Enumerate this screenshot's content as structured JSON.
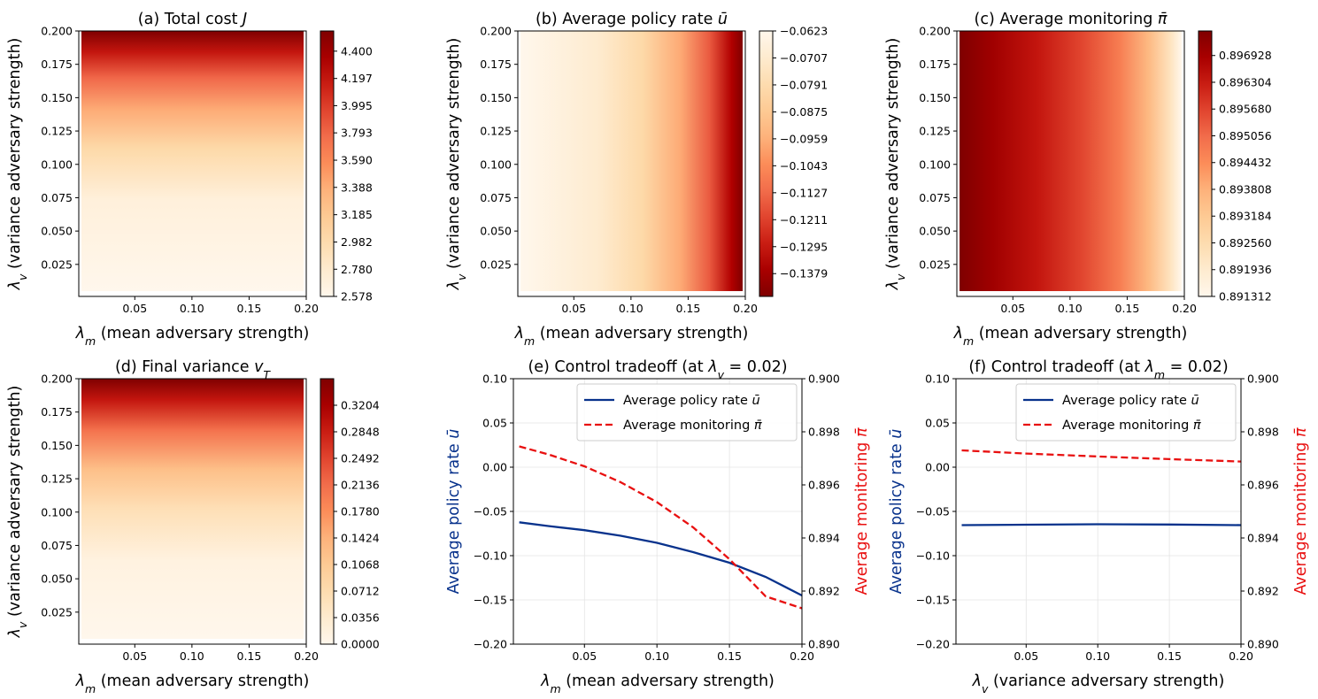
{
  "chart_data": [
    {
      "id": "a",
      "type": "heatmap",
      "title": "(a) Total cost J",
      "title_main": "(a) Total cost ",
      "title_sym": "J",
      "xlabel_sym": "λ",
      "xlabel_sub": "m",
      "xlabel_rest": " (mean adversary strength)",
      "ylabel_sym": "λ",
      "ylabel_sub": "v",
      "ylabel_rest": " (variance adversary strength)",
      "xlim": [
        0.001,
        0.2
      ],
      "ylim": [
        0.001,
        0.2
      ],
      "xticks": [
        "0.05",
        "0.10",
        "0.15",
        "0.20"
      ],
      "yticks": [
        "0.025",
        "0.050",
        "0.075",
        "0.100",
        "0.125",
        "0.150",
        "0.175",
        "0.200"
      ],
      "colorbar": {
        "min": 2.578,
        "max": 4.55,
        "colormap": "OrRd",
        "ticks": [
          "2.578",
          "2.780",
          "2.982",
          "3.185",
          "3.388",
          "3.590",
          "3.793",
          "3.995",
          "4.197",
          "4.400"
        ]
      },
      "gradient": "vertical",
      "gradient_profile": [
        [
          0,
          0.0
        ],
        [
          0.35,
          0.06
        ],
        [
          0.55,
          0.22
        ],
        [
          0.7,
          0.42
        ],
        [
          0.82,
          0.62
        ],
        [
          0.92,
          0.82
        ],
        [
          1.0,
          1.0
        ]
      ]
    },
    {
      "id": "b",
      "type": "heatmap",
      "title": "(b) Average policy rate ū",
      "title_main": "(b) Average policy rate ",
      "title_sym": "ū",
      "xlabel_sym": "λ",
      "xlabel_sub": "m",
      "xlabel_rest": " (mean adversary strength)",
      "ylabel_sym": "λ",
      "ylabel_sub": "v",
      "ylabel_rest": " (variance adversary strength)",
      "xlim": [
        0.001,
        0.2
      ],
      "ylim": [
        0.001,
        0.2
      ],
      "xticks": [
        "0.05",
        "0.10",
        "0.15",
        "0.20"
      ],
      "yticks": [
        "0.025",
        "0.050",
        "0.075",
        "0.100",
        "0.125",
        "0.150",
        "0.175",
        "0.200"
      ],
      "colorbar": {
        "min": -0.145,
        "max": -0.0623,
        "colormap": "OrRd_r",
        "ticks": [
          "−0.1379",
          "−0.1295",
          "−0.1211",
          "−0.1127",
          "−0.1043",
          "−0.0959",
          "−0.0875",
          "−0.0791",
          "−0.0707",
          "−0.0623"
        ]
      },
      "gradient": "horizontal",
      "gradient_profile": [
        [
          0,
          0.0
        ],
        [
          0.35,
          0.1
        ],
        [
          0.55,
          0.22
        ],
        [
          0.72,
          0.42
        ],
        [
          0.85,
          0.65
        ],
        [
          0.95,
          0.88
        ],
        [
          1.0,
          1.0
        ]
      ]
    },
    {
      "id": "c",
      "type": "heatmap",
      "title": "(c) Average monitoring π̄",
      "title_main": "(c) Average monitoring ",
      "title_sym": "π̄",
      "xlabel_sym": "λ",
      "xlabel_sub": "m",
      "xlabel_rest": " (mean adversary strength)",
      "ylabel_sym": "λ",
      "ylabel_sub": "v",
      "ylabel_rest": " (variance adversary strength)",
      "xlim": [
        0.001,
        0.2
      ],
      "ylim": [
        0.001,
        0.2
      ],
      "xticks": [
        "0.05",
        "0.10",
        "0.15",
        "0.20"
      ],
      "yticks": [
        "0.025",
        "0.050",
        "0.075",
        "0.100",
        "0.125",
        "0.150",
        "0.175",
        "0.200"
      ],
      "colorbar": {
        "min": 0.891312,
        "max": 0.8975,
        "colormap": "OrRd",
        "ticks": [
          "0.891312",
          "0.891936",
          "0.892560",
          "0.893184",
          "0.893808",
          "0.894432",
          "0.895056",
          "0.895680",
          "0.896304",
          "0.896928"
        ]
      },
      "gradient": "horizontal",
      "gradient_profile": [
        [
          0,
          1.0
        ],
        [
          0.15,
          0.92
        ],
        [
          0.35,
          0.82
        ],
        [
          0.55,
          0.7
        ],
        [
          0.72,
          0.55
        ],
        [
          0.85,
          0.38
        ],
        [
          0.95,
          0.15
        ],
        [
          1.0,
          0.0
        ]
      ]
    },
    {
      "id": "d",
      "type": "heatmap",
      "title": "(d) Final variance v_T",
      "title_main": "(d) Final variance ",
      "title_sym": "v",
      "title_sub": "T",
      "xlabel_sym": "λ",
      "xlabel_sub": "m",
      "xlabel_rest": " (mean adversary strength)",
      "ylabel_sym": "λ",
      "ylabel_sub": "v",
      "ylabel_rest": " (variance adversary strength)",
      "xlim": [
        0.001,
        0.2
      ],
      "ylim": [
        0.001,
        0.2
      ],
      "xticks": [
        "0.05",
        "0.10",
        "0.15",
        "0.20"
      ],
      "yticks": [
        "0.025",
        "0.050",
        "0.075",
        "0.100",
        "0.125",
        "0.150",
        "0.175",
        "0.200"
      ],
      "colorbar": {
        "min": 0.0,
        "max": 0.356,
        "colormap": "OrRd",
        "ticks": [
          "0.0000",
          "0.0356",
          "0.0712",
          "0.1068",
          "0.1424",
          "0.1780",
          "0.2136",
          "0.2492",
          "0.2848",
          "0.3204"
        ]
      },
      "gradient": "vertical",
      "gradient_profile": [
        [
          0,
          0.0
        ],
        [
          0.3,
          0.04
        ],
        [
          0.5,
          0.18
        ],
        [
          0.65,
          0.35
        ],
        [
          0.8,
          0.58
        ],
        [
          0.92,
          0.82
        ],
        [
          1.0,
          1.0
        ]
      ]
    },
    {
      "id": "e",
      "type": "line",
      "title": "(e) Control tradeoff (at λ_v = 0.02)",
      "title_main": "(e) Control tradeoff (at ",
      "title_sym": "λ",
      "title_sub": "v",
      "title_rest": " = 0.02)",
      "xlabel_sym": "λ",
      "xlabel_sub": "m",
      "xlabel_rest": " (mean adversary strength)",
      "ylabel_left_main": "Average policy rate ",
      "ylabel_left_sym": "ū",
      "ylabel_right_main": "Average monitoring ",
      "ylabel_right_sym": "π̄",
      "xlim": [
        0.001,
        0.2
      ],
      "ylim_left": [
        -0.2,
        0.1
      ],
      "ylim_right": [
        0.89,
        0.9
      ],
      "xticks": [
        "0.05",
        "0.10",
        "0.15",
        "0.20"
      ],
      "yticks_left": [
        "−0.20",
        "−0.15",
        "−0.10",
        "−0.05",
        "0.00",
        "0.05",
        "0.10"
      ],
      "yticks_right": [
        "0.890",
        "0.892",
        "0.894",
        "0.896",
        "0.898",
        "0.900"
      ],
      "grid": true,
      "legend_position": "top-right",
      "series": [
        {
          "name_main": "Average policy rate ",
          "name_sym": "ū",
          "axis": "left",
          "color": "#08328c",
          "dash": "solid",
          "x": [
            0.005,
            0.025,
            0.05,
            0.075,
            0.1,
            0.125,
            0.15,
            0.175,
            0.2
          ],
          "y": [
            -0.0623,
            -0.0665,
            -0.0712,
            -0.0775,
            -0.0855,
            -0.096,
            -0.108,
            -0.124,
            -0.145
          ]
        },
        {
          "name_main": "Average monitoring ",
          "name_sym": "π̄",
          "axis": "right",
          "color": "#e81010",
          "dash": "dashed",
          "x": [
            0.005,
            0.025,
            0.05,
            0.075,
            0.1,
            0.125,
            0.15,
            0.175,
            0.2
          ],
          "y": [
            0.89745,
            0.89715,
            0.8967,
            0.8961,
            0.89535,
            0.8944,
            0.8932,
            0.8918,
            0.89135
          ]
        }
      ]
    },
    {
      "id": "f",
      "type": "line",
      "title": "(f) Control tradeoff (at λ_m = 0.02)",
      "title_main": "(f) Control tradeoff (at ",
      "title_sym": "λ",
      "title_sub": "m",
      "title_rest": " = 0.02)",
      "xlabel_sym": "λ",
      "xlabel_sub": "v",
      "xlabel_rest": " (variance adversary strength)",
      "ylabel_left_main": "Average policy rate ",
      "ylabel_left_sym": "ū",
      "ylabel_right_main": "Average monitoring ",
      "ylabel_right_sym": "π̄",
      "xlim": [
        0.001,
        0.2
      ],
      "ylim_left": [
        -0.2,
        0.1
      ],
      "ylim_right": [
        0.89,
        0.9
      ],
      "xticks": [
        "0.05",
        "0.10",
        "0.15",
        "0.20"
      ],
      "yticks_left": [
        "−0.20",
        "−0.15",
        "−0.10",
        "−0.05",
        "0.00",
        "0.05",
        "0.10"
      ],
      "yticks_right": [
        "0.890",
        "0.892",
        "0.894",
        "0.896",
        "0.898",
        "0.900"
      ],
      "grid": true,
      "legend_position": "top-right",
      "series": [
        {
          "name_main": "Average policy rate ",
          "name_sym": "ū",
          "axis": "left",
          "color": "#08328c",
          "dash": "solid",
          "x": [
            0.005,
            0.05,
            0.1,
            0.15,
            0.2
          ],
          "y": [
            -0.0655,
            -0.065,
            -0.0645,
            -0.0648,
            -0.0655
          ]
        },
        {
          "name_main": "Average monitoring ",
          "name_sym": "π̄",
          "axis": "right",
          "color": "#e81010",
          "dash": "dashed",
          "x": [
            0.005,
            0.05,
            0.1,
            0.15,
            0.2
          ],
          "y": [
            0.8973,
            0.89718,
            0.89707,
            0.89697,
            0.89688
          ]
        }
      ]
    }
  ]
}
